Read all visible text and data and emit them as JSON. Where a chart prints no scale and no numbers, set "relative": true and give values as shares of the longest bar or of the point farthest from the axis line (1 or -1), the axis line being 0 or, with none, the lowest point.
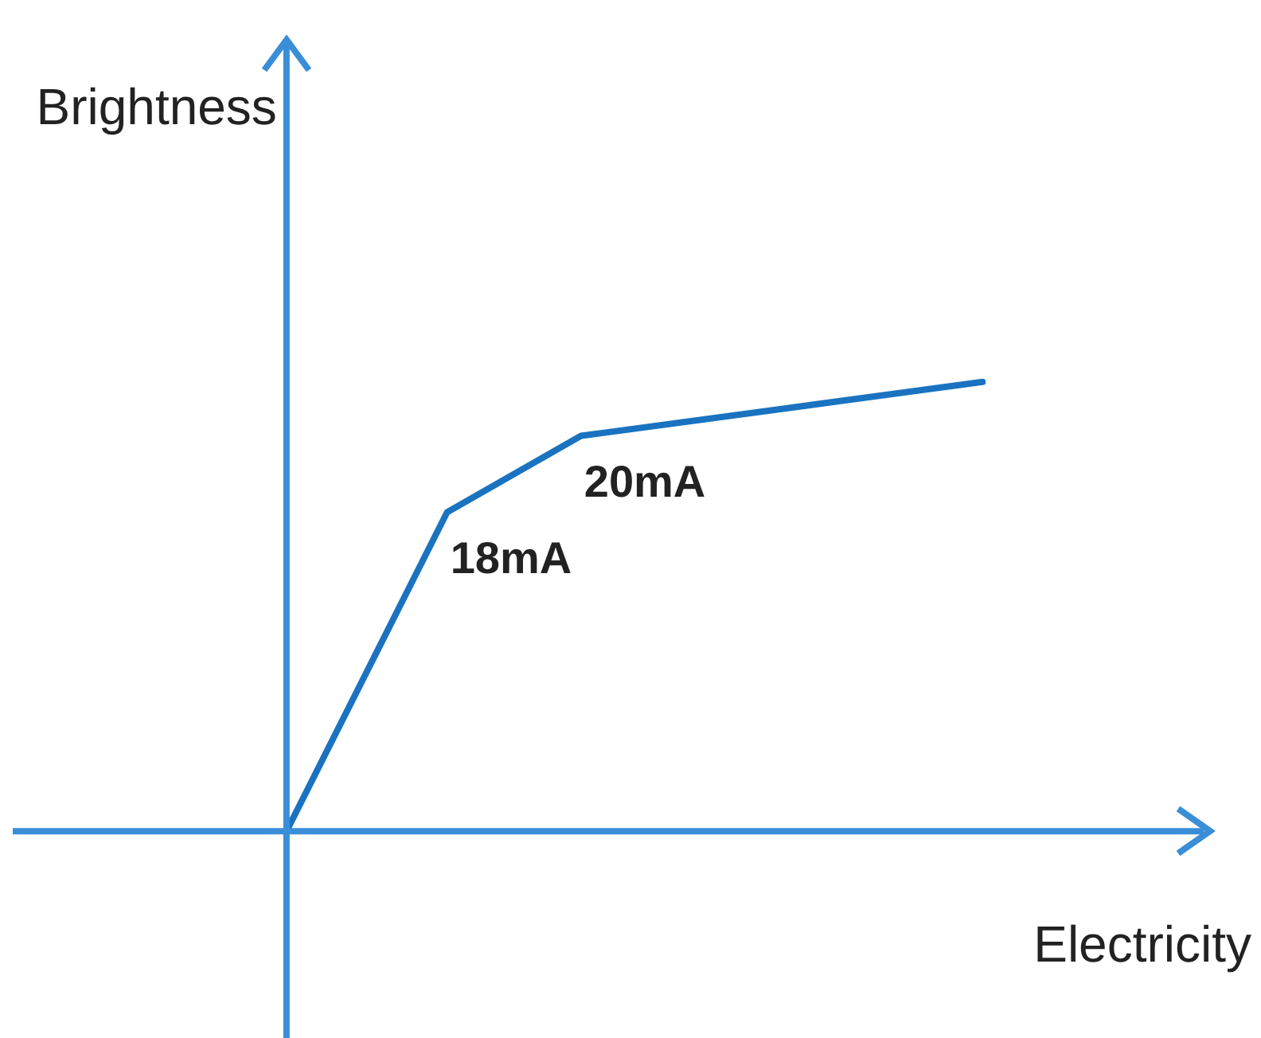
{
  "chart_data": {
    "type": "line",
    "relative": true,
    "xlabel": "Electricity",
    "ylabel": "Brightness",
    "tick_labels": false,
    "marker": "none",
    "line_style": "solid",
    "categories": [
      null,
      null,
      null,
      null,
      null,
      null,
      null,
      null,
      null,
      null,
      null,
      null,
      null,
      null,
      null,
      null,
      null,
      null,
      null,
      null,
      null,
      null,
      null,
      null,
      null,
      null,
      null,
      null,
      null,
      null,
      null,
      null,
      null,
      null,
      null,
      null,
      null,
      null,
      null,
      null,
      null,
      null,
      null,
      null,
      null
    ],
    "series": [
      {
        "color": "#1a73c0",
        "values": [
          null,
          null,
          null,
          null,
          null,
          null,
          null,
          null,
          null,
          null,
          0,
          null,
          null,
          null,
          null,
          null,
          0.71,
          null,
          null,
          null,
          null,
          0.88,
          null,
          null,
          null,
          null,
          null,
          null,
          null,
          null,
          null,
          null,
          null,
          null,
          null,
          null,
          1,
          null,
          null,
          null,
          null,
          null,
          null,
          null,
          null
        ]
      }
    ],
    "annotations": [
      "18mA",
      "20mA"
    ]
  }
}
